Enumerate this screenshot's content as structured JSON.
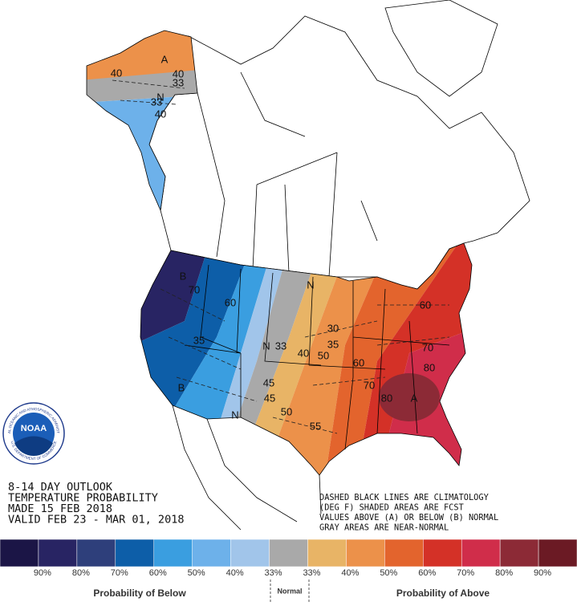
{
  "outlook": {
    "lines": [
      "8-14 DAY OUTLOOK",
      "TEMPERATURE PROBABILITY",
      "MADE  15 FEB 2018",
      "VALID  FEB 23 - MAR 01, 2018"
    ]
  },
  "notes": {
    "lines": [
      "DASHED BLACK LINES ARE CLIMATOLOGY",
      "(DEG F) SHADED AREAS ARE FCST",
      "VALUES ABOVE (A) OR BELOW (B) NORMAL",
      "GRAY AREAS ARE NEAR-NORMAL"
    ]
  },
  "logo": {
    "name": "NOAA",
    "ring_top": "NATIONAL OCEANIC AND ATMOSPHERIC ADMINISTRATION",
    "ring_bottom": "U.S. DEPARTMENT OF COMMERCE"
  },
  "legend": {
    "colors": [
      "#1b1546",
      "#282463",
      "#2e3f7b",
      "#0d5ea8",
      "#3a9ee0",
      "#6db1ea",
      "#a1c5ea",
      "#a9a9a9",
      "#e8b466",
      "#ec914a",
      "#e3642d",
      "#d43127",
      "#d02d4a",
      "#8c2a36",
      "#6b1a24"
    ],
    "labels": [
      "90%",
      "80%",
      "70%",
      "60%",
      "50%",
      "40%",
      "33%",
      "33%",
      "40%",
      "50%",
      "60%",
      "70%",
      "80%",
      "90%"
    ],
    "below_title": "Probability of Below",
    "normal_title": "Normal",
    "above_title": "Probability of Above"
  },
  "map": {
    "labels": [
      "A",
      "40",
      "40",
      "33",
      "N",
      "33",
      "40",
      "B",
      "70",
      "60",
      "35",
      "B",
      "N",
      "N",
      "33",
      "40",
      "35",
      "50",
      "30",
      "45",
      "45",
      "N",
      "50",
      "55",
      "60",
      "70",
      "80",
      "A",
      "80",
      "70",
      "60"
    ]
  }
}
